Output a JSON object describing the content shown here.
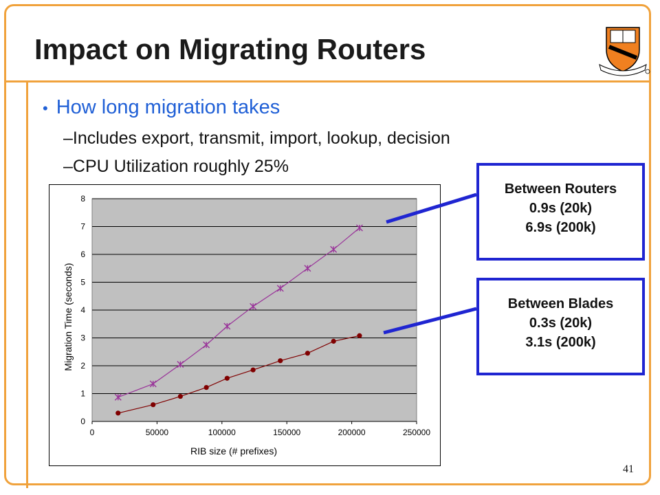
{
  "slide": {
    "title": "Impact on Migrating Routers",
    "page_number": "41"
  },
  "bullets": {
    "main": "How long migration takes",
    "sub1": "Includes export,  transmit, import, lookup, decision",
    "sub2": "CPU Utilization roughly 25%",
    "dash": "–",
    "dot": "•"
  },
  "callouts": {
    "routers": {
      "heading": "Between Routers",
      "line1": "0.9s (20k)",
      "line2": "6.9s (200k)"
    },
    "blades": {
      "heading": "Between Blades",
      "line1": "0.3s (20k)",
      "line2": "3.1s (200k)"
    }
  },
  "colors": {
    "frame": "#f0a23c",
    "bullet_blue": "#1f5fd6",
    "callout_border": "#1f25d1",
    "plot_area": "#c0c0c0",
    "routers_series": "#993399",
    "blades_series": "#800000"
  },
  "chart_data": {
    "type": "line",
    "xlabel": "RIB size (# prefixes)",
    "ylabel": "Migration Time (seconds)",
    "xlim": [
      0,
      250000
    ],
    "ylim": [
      0,
      8
    ],
    "x_ticks": [
      "0",
      "50000",
      "100000",
      "150000",
      "200000",
      "250000"
    ],
    "y_ticks": [
      "0",
      "1",
      "2",
      "3",
      "4",
      "5",
      "6",
      "7",
      "8"
    ],
    "grid": "horizontal",
    "legend": "none",
    "series": [
      {
        "key": "routers",
        "marker": "asterisk",
        "points": [
          [
            20000,
            0.87
          ],
          [
            47000,
            1.35
          ],
          [
            68000,
            2.05
          ],
          [
            88000,
            2.75
          ],
          [
            104000,
            3.42
          ],
          [
            124000,
            4.13
          ],
          [
            145000,
            4.78
          ],
          [
            166000,
            5.5
          ],
          [
            186000,
            6.18
          ],
          [
            206000,
            6.95
          ]
        ]
      },
      {
        "key": "blades",
        "marker": "circle",
        "points": [
          [
            20000,
            0.3
          ],
          [
            47000,
            0.6
          ],
          [
            68000,
            0.9
          ],
          [
            88000,
            1.22
          ],
          [
            104000,
            1.55
          ],
          [
            124000,
            1.85
          ],
          [
            145000,
            2.18
          ],
          [
            166000,
            2.45
          ],
          [
            186000,
            2.88
          ],
          [
            206000,
            3.08
          ]
        ]
      }
    ]
  }
}
